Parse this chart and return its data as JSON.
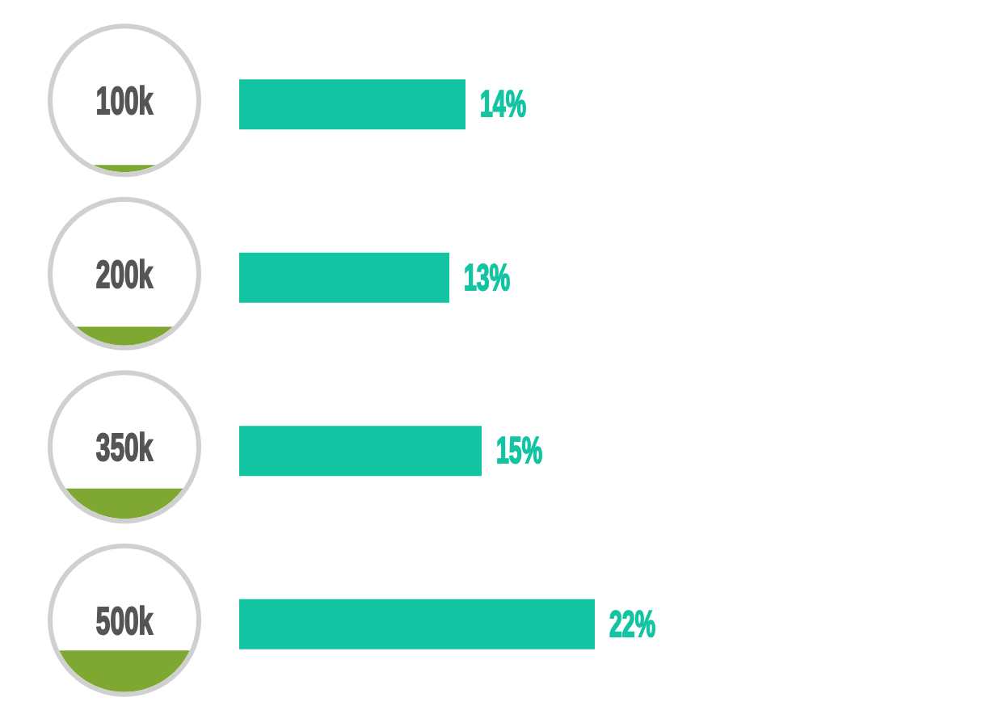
{
  "chart_data": {
    "type": "bar",
    "orientation": "horizontal",
    "categories": [
      "100k",
      "200k",
      "350k",
      "500k"
    ],
    "values": [
      14,
      13,
      15,
      22
    ],
    "color": "#13c4a3",
    "value_labels": [
      "14%",
      "13%",
      "15%",
      "22%"
    ]
  }
}
